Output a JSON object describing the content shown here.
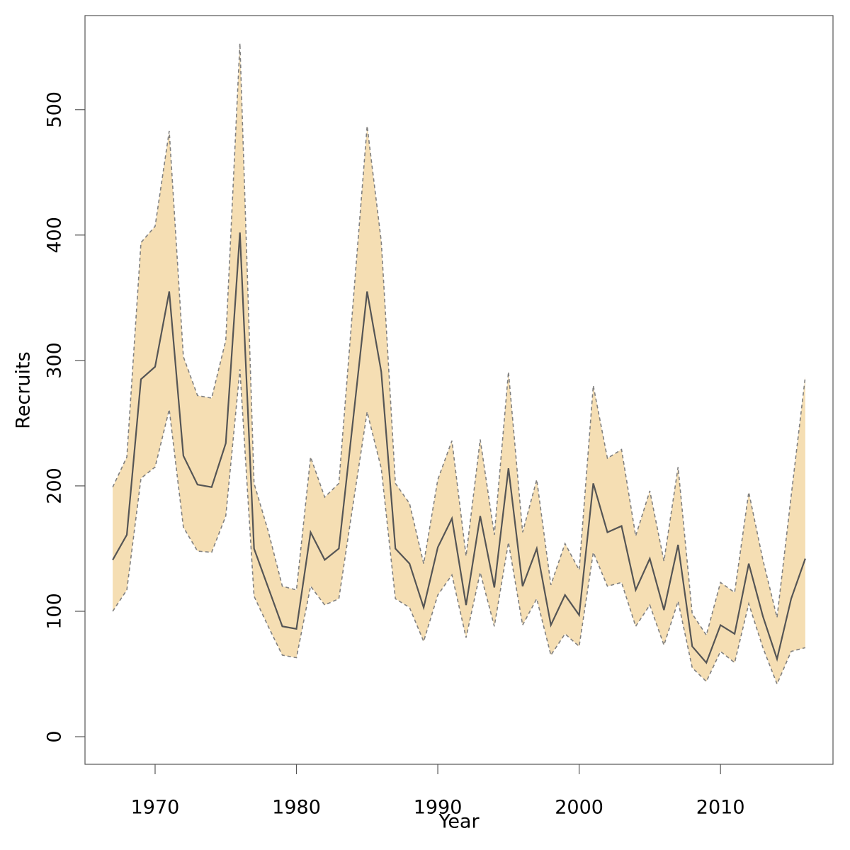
{
  "chart_data": {
    "type": "line",
    "x_label": "Year",
    "y_label": "Recruits",
    "x": [
      1967,
      1968,
      1969,
      1970,
      1971,
      1972,
      1973,
      1974,
      1975,
      1976,
      1977,
      1978,
      1979,
      1980,
      1981,
      1982,
      1983,
      1984,
      1985,
      1986,
      1987,
      1988,
      1989,
      1990,
      1991,
      1992,
      1993,
      1994,
      1995,
      1996,
      1997,
      1998,
      1999,
      2000,
      2001,
      2002,
      2003,
      2004,
      2005,
      2006,
      2007,
      2008,
      2009,
      2010,
      2011,
      2012,
      2013,
      2014,
      2015,
      2016
    ],
    "series": [
      {
        "color": "#555555",
        "values": [
          141,
          161,
          285,
          295,
          355,
          224,
          201,
          199,
          234,
          402,
          150,
          119,
          88,
          86,
          163,
          141,
          150,
          252,
          355,
          291,
          150,
          138,
          103,
          151,
          174,
          105,
          176,
          119,
          214,
          120,
          150,
          89,
          113,
          97,
          202,
          163,
          168,
          117,
          142,
          101,
          153,
          72,
          59,
          89,
          82,
          138,
          96,
          62,
          110,
          142
        ]
      }
    ],
    "band": {
      "fill": "#f5deb3",
      "line_color": "#808080",
      "lower": [
        100,
        117,
        206,
        215,
        261,
        167,
        148,
        147,
        176,
        293,
        112,
        88,
        65,
        63,
        120,
        105,
        110,
        185,
        259,
        214,
        110,
        103,
        76,
        113,
        129,
        79,
        131,
        88,
        155,
        89,
        110,
        65,
        82,
        72,
        147,
        120,
        123,
        88,
        105,
        73,
        108,
        55,
        44,
        68,
        59,
        106,
        71,
        42,
        68,
        71
      ],
      "upper": [
        199,
        223,
        394,
        407,
        483,
        303,
        272,
        270,
        316,
        553,
        202,
        164,
        120,
        117,
        223,
        191,
        202,
        345,
        487,
        395,
        202,
        186,
        138,
        205,
        236,
        144,
        237,
        161,
        291,
        163,
        205,
        121,
        154,
        133,
        280,
        222,
        229,
        160,
        196,
        140,
        215,
        98,
        81,
        123,
        115,
        195,
        141,
        95,
        192,
        287
      ]
    },
    "xlim": [
      1965.04,
      2017.96
    ],
    "ylim": [
      -22,
      575
    ],
    "xticks": [
      1970,
      1980,
      1990,
      2000,
      2010
    ],
    "yticks": [
      0,
      100,
      200,
      300,
      400,
      500
    ]
  }
}
